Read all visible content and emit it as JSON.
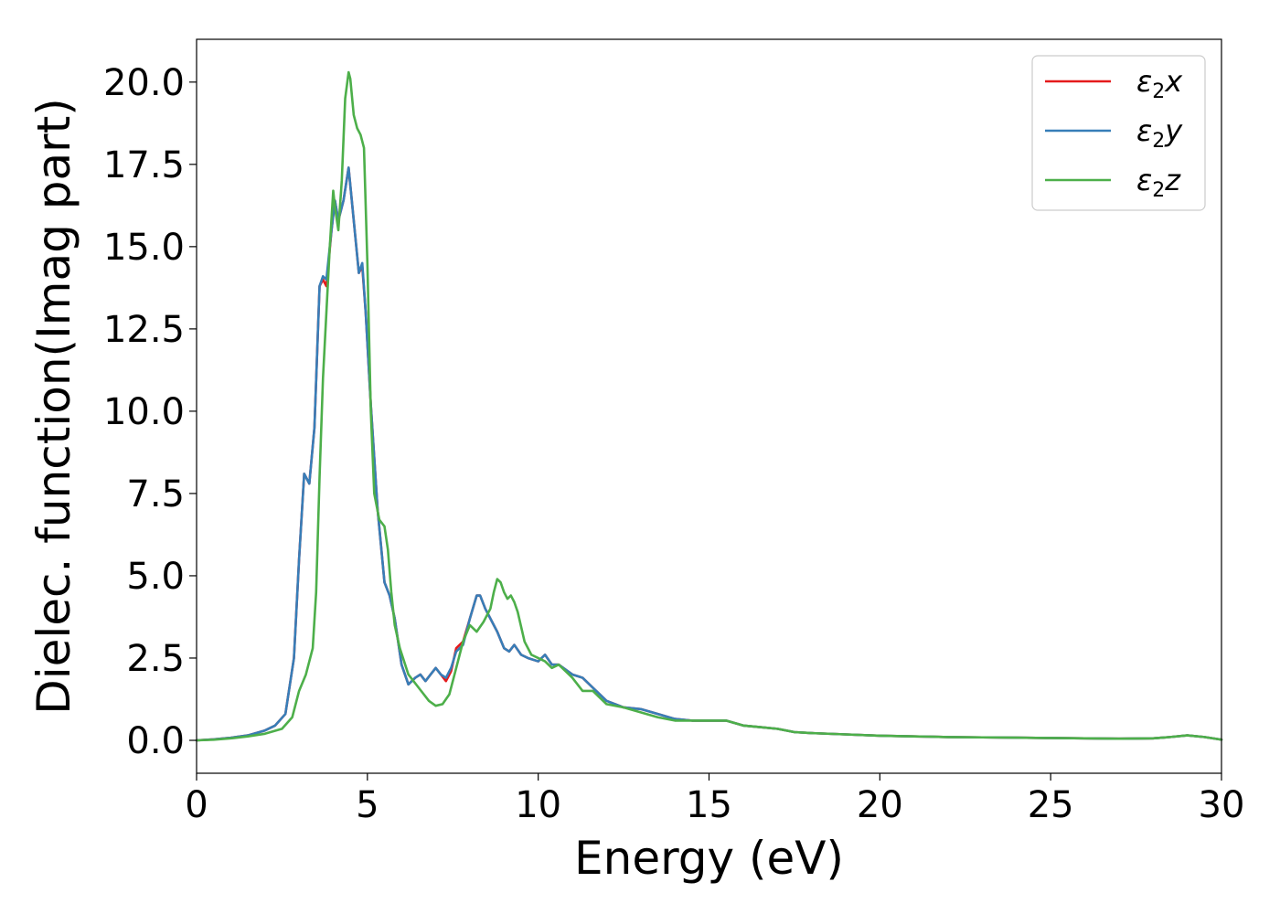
{
  "chart_data": {
    "type": "line",
    "title": "",
    "xlabel": "Energy (eV)",
    "ylabel": "Dielec. function(Imag part)",
    "xlim": [
      0,
      30
    ],
    "ylim": [
      -1.0,
      21.3
    ],
    "xticks": [
      0,
      5,
      10,
      15,
      20,
      25,
      30
    ],
    "xtick_labels": [
      "0",
      "5",
      "10",
      "15",
      "20",
      "25",
      "30"
    ],
    "yticks": [
      0.0,
      2.5,
      5.0,
      7.5,
      10.0,
      12.5,
      15.0,
      17.5,
      20.0
    ],
    "ytick_labels": [
      "0.0",
      "2.5",
      "5.0",
      "7.5",
      "10.0",
      "12.5",
      "15.0",
      "17.5",
      "20.0"
    ],
    "grid": false,
    "legend_position": "top-right",
    "series": [
      {
        "name": "ε₂x",
        "legend_base": "ε",
        "legend_sub": "2",
        "legend_var": "x",
        "color": "#e41a1c",
        "x": [
          0,
          0.5,
          1,
          1.5,
          2,
          2.3,
          2.6,
          2.85,
          3.0,
          3.15,
          3.3,
          3.45,
          3.6,
          3.7,
          3.8,
          3.95,
          4.05,
          4.15,
          4.3,
          4.45,
          4.6,
          4.75,
          4.85,
          4.95,
          5.1,
          5.3,
          5.5,
          5.65,
          5.8,
          6.0,
          6.2,
          6.4,
          6.55,
          6.7,
          6.85,
          7.0,
          7.15,
          7.3,
          7.45,
          7.6,
          7.8,
          8.0,
          8.2,
          8.3,
          8.45,
          8.6,
          8.8,
          9.0,
          9.15,
          9.3,
          9.5,
          9.7,
          10.0,
          10.2,
          10.4,
          10.6,
          10.8,
          11.0,
          11.3,
          11.6,
          12.0,
          12.5,
          13.0,
          13.5,
          14.0,
          14.5,
          15.0,
          15.5,
          16.0,
          16.5,
          17.0,
          17.5,
          18.0,
          19.0,
          20.0,
          21.0,
          22.0,
          23.0,
          24.0,
          25.0,
          26.0,
          27.0,
          28.0,
          28.5,
          29.0,
          29.5,
          30.0
        ],
        "y": [
          0.0,
          0.03,
          0.08,
          0.15,
          0.3,
          0.45,
          0.8,
          2.5,
          5.5,
          8.1,
          7.8,
          9.5,
          13.8,
          14.0,
          13.8,
          15.5,
          16.4,
          15.8,
          16.4,
          17.4,
          15.8,
          14.2,
          14.4,
          13.0,
          10.2,
          7.0,
          4.8,
          4.4,
          3.7,
          2.3,
          1.7,
          1.9,
          2.0,
          1.8,
          2.0,
          2.2,
          2.0,
          1.8,
          2.1,
          2.8,
          3.0,
          3.7,
          4.4,
          4.4,
          4.0,
          3.7,
          3.3,
          2.8,
          2.7,
          2.9,
          2.6,
          2.5,
          2.4,
          2.6,
          2.3,
          2.3,
          2.15,
          2.0,
          1.9,
          1.6,
          1.2,
          1.0,
          0.95,
          0.8,
          0.65,
          0.6,
          0.6,
          0.6,
          0.45,
          0.4,
          0.35,
          0.25,
          0.22,
          0.18,
          0.14,
          0.12,
          0.1,
          0.09,
          0.08,
          0.07,
          0.06,
          0.05,
          0.06,
          0.1,
          0.15,
          0.1,
          0.02
        ]
      },
      {
        "name": "ε₂y",
        "legend_base": "ε",
        "legend_sub": "2",
        "legend_var": "y",
        "color": "#377eb8",
        "x": [
          0,
          0.5,
          1,
          1.5,
          2,
          2.3,
          2.6,
          2.85,
          3.0,
          3.15,
          3.3,
          3.45,
          3.6,
          3.7,
          3.8,
          3.95,
          4.05,
          4.15,
          4.3,
          4.45,
          4.6,
          4.75,
          4.85,
          4.95,
          5.1,
          5.3,
          5.5,
          5.65,
          5.8,
          6.0,
          6.2,
          6.4,
          6.55,
          6.7,
          6.85,
          7.0,
          7.15,
          7.3,
          7.45,
          7.6,
          7.8,
          8.0,
          8.2,
          8.3,
          8.45,
          8.6,
          8.8,
          9.0,
          9.15,
          9.3,
          9.5,
          9.7,
          10.0,
          10.2,
          10.4,
          10.6,
          10.8,
          11.0,
          11.3,
          11.6,
          12.0,
          12.5,
          13.0,
          13.5,
          14.0,
          14.5,
          15.0,
          15.5,
          16.0,
          16.5,
          17.0,
          17.5,
          18.0,
          19.0,
          20.0,
          21.0,
          22.0,
          23.0,
          24.0,
          25.0,
          26.0,
          27.0,
          28.0,
          28.5,
          29.0,
          29.5,
          30.0
        ],
        "y": [
          0.0,
          0.03,
          0.08,
          0.15,
          0.3,
          0.45,
          0.8,
          2.5,
          5.5,
          8.1,
          7.8,
          9.5,
          13.8,
          14.1,
          14.0,
          15.5,
          16.4,
          15.8,
          16.4,
          17.4,
          15.8,
          14.2,
          14.5,
          13.0,
          10.2,
          7.0,
          4.8,
          4.4,
          3.7,
          2.3,
          1.7,
          1.9,
          2.0,
          1.8,
          2.0,
          2.2,
          2.0,
          1.9,
          2.2,
          2.7,
          2.9,
          3.7,
          4.4,
          4.4,
          4.0,
          3.7,
          3.3,
          2.8,
          2.7,
          2.9,
          2.6,
          2.5,
          2.4,
          2.6,
          2.3,
          2.3,
          2.15,
          2.0,
          1.9,
          1.6,
          1.2,
          1.0,
          0.95,
          0.8,
          0.65,
          0.6,
          0.6,
          0.6,
          0.45,
          0.4,
          0.35,
          0.25,
          0.22,
          0.18,
          0.14,
          0.12,
          0.1,
          0.09,
          0.08,
          0.07,
          0.06,
          0.05,
          0.06,
          0.1,
          0.15,
          0.1,
          0.02
        ]
      },
      {
        "name": "ε₂z",
        "legend_base": "ε",
        "legend_sub": "2",
        "legend_var": "z",
        "color": "#4daf4a",
        "x": [
          0,
          0.5,
          1,
          1.5,
          2,
          2.5,
          2.8,
          3.0,
          3.2,
          3.4,
          3.5,
          3.6,
          3.7,
          3.8,
          3.9,
          4.0,
          4.05,
          4.15,
          4.25,
          4.35,
          4.45,
          4.5,
          4.6,
          4.7,
          4.8,
          4.9,
          5.0,
          5.1,
          5.2,
          5.35,
          5.5,
          5.6,
          5.7,
          5.8,
          5.95,
          6.2,
          6.5,
          6.8,
          7.0,
          7.2,
          7.4,
          7.6,
          7.8,
          8.0,
          8.2,
          8.4,
          8.6,
          8.7,
          8.8,
          8.9,
          9.0,
          9.1,
          9.2,
          9.3,
          9.4,
          9.6,
          9.8,
          10.0,
          10.2,
          10.4,
          10.6,
          10.8,
          11.0,
          11.3,
          11.6,
          12.0,
          12.5,
          13.0,
          13.5,
          14.0,
          14.5,
          15.0,
          15.5,
          16.0,
          16.5,
          17.0,
          17.5,
          18.0,
          19.0,
          20.0,
          21.0,
          22.0,
          23.0,
          24.0,
          25.0,
          26.0,
          27.0,
          28.0,
          28.5,
          29.0,
          29.5,
          30.0
        ],
        "y": [
          0.0,
          0.02,
          0.06,
          0.12,
          0.2,
          0.35,
          0.7,
          1.5,
          2.0,
          2.8,
          4.5,
          8.0,
          11.0,
          13.0,
          15.0,
          16.7,
          16.2,
          15.5,
          17.0,
          19.5,
          20.3,
          20.1,
          19.0,
          18.6,
          18.4,
          18.0,
          14.5,
          10.0,
          7.5,
          6.7,
          6.5,
          5.8,
          4.5,
          3.5,
          2.8,
          2.0,
          1.6,
          1.2,
          1.05,
          1.1,
          1.4,
          2.2,
          3.0,
          3.5,
          3.3,
          3.6,
          4.0,
          4.5,
          4.9,
          4.8,
          4.5,
          4.3,
          4.4,
          4.2,
          3.9,
          3.0,
          2.6,
          2.5,
          2.4,
          2.2,
          2.3,
          2.1,
          1.9,
          1.5,
          1.5,
          1.1,
          1.0,
          0.85,
          0.7,
          0.6,
          0.6,
          0.6,
          0.6,
          0.45,
          0.4,
          0.35,
          0.25,
          0.22,
          0.18,
          0.14,
          0.12,
          0.1,
          0.09,
          0.08,
          0.07,
          0.06,
          0.05,
          0.06,
          0.1,
          0.15,
          0.1,
          0.02
        ]
      }
    ]
  }
}
